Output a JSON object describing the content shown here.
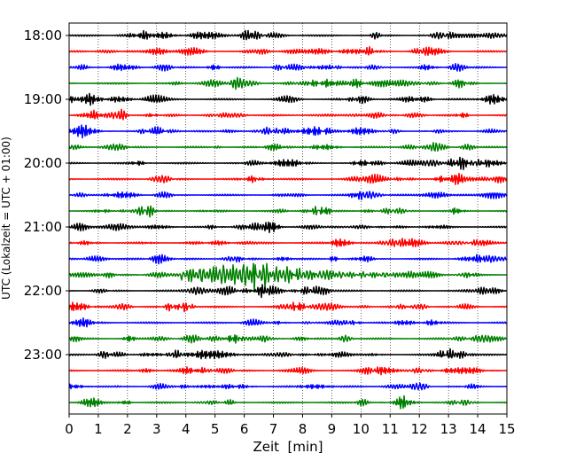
{
  "chart_data": {
    "type": "line",
    "title": "",
    "xlabel": "Zeit  [min]",
    "ylabel": "UTC (Lokalzeit = UTC + 01:00)",
    "xlim": [
      0,
      15
    ],
    "x_ticks": [
      0,
      1,
      2,
      3,
      4,
      5,
      6,
      7,
      8,
      9,
      10,
      11,
      12,
      13,
      14,
      15
    ],
    "y_tick_labels": [
      "18:00",
      "19:00",
      "20:00",
      "21:00",
      "22:00",
      "23:00"
    ],
    "trace_start_times_utc": [
      "18:00",
      "18:15",
      "18:30",
      "18:45",
      "19:00",
      "19:15",
      "19:30",
      "19:45",
      "20:00",
      "20:15",
      "20:30",
      "20:45",
      "21:00",
      "21:15",
      "21:30",
      "21:45",
      "22:00",
      "22:15",
      "22:30",
      "22:45",
      "23:00",
      "23:15",
      "23:30",
      "23:45"
    ],
    "trace_color_cycle": [
      "#000000",
      "#ff0000",
      "#0000ff",
      "#008000"
    ],
    "grid": "x-dotted",
    "event": {
      "trace_start_utc": "21:45",
      "onset_min": 3.8,
      "peak_min": 6.4,
      "end_min": 11.5
    }
  }
}
